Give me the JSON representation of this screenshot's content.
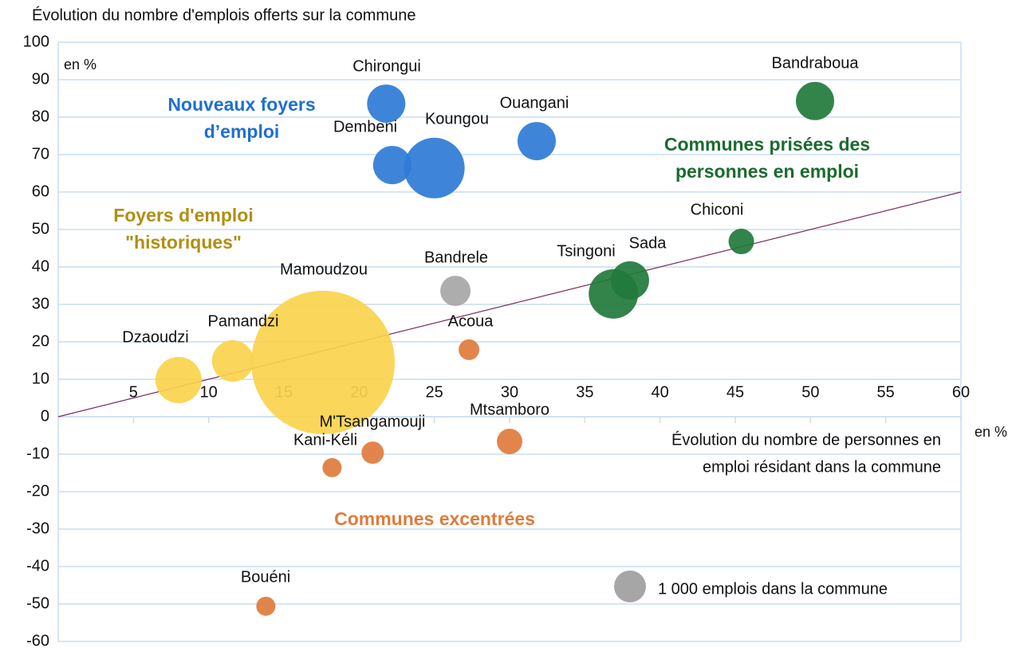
{
  "chart_data": {
    "type": "bubble",
    "title": "Évolution du nombre d'emplois offerts sur la commune",
    "y_unit": "en %",
    "x_label": [
      "Évolution du nombre de personnes en",
      "emploi résidant dans la commune"
    ],
    "x_unit": "en %",
    "xlim": [
      0,
      60
    ],
    "ylim": [
      -60,
      100
    ],
    "xticks": [
      5,
      10,
      15,
      20,
      25,
      30,
      35,
      40,
      45,
      50,
      55,
      60
    ],
    "yticks": [
      -60,
      -50,
      -40,
      -30,
      -20,
      -10,
      0,
      10,
      20,
      30,
      40,
      50,
      60,
      70,
      80,
      90,
      100
    ],
    "grid": true,
    "reference_line": {
      "slope": 1,
      "color": "#7b2d5e"
    },
    "points": [
      {
        "label": "Chirongui",
        "x": 21.8,
        "y": 83.6,
        "size": 1440,
        "color": "#2e7bd6"
      },
      {
        "label": "Dembeni",
        "x": 22.2,
        "y": 67.2,
        "size": 1440,
        "color": "#2e7bd6"
      },
      {
        "label": "Koungou",
        "x": 25.0,
        "y": 66.4,
        "size": 3610,
        "color": "#2e7bd6"
      },
      {
        "label": "Ouangani",
        "x": 31.8,
        "y": 73.6,
        "size": 1440,
        "color": "#2e7bd6"
      },
      {
        "label": "Bandraboua",
        "x": 50.3,
        "y": 84.3,
        "size": 1440,
        "color": "#217a3c"
      },
      {
        "label": "Chiconi",
        "x": 45.4,
        "y": 46.8,
        "size": 640,
        "color": "#217a3c"
      },
      {
        "label": "Sada",
        "x": 38.0,
        "y": 36.4,
        "size": 1440,
        "color": "#217a3c"
      },
      {
        "label": "Tsingoni",
        "x": 36.9,
        "y": 32.8,
        "size": 2400,
        "color": "#217a3c"
      },
      {
        "label": "Bandrele",
        "x": 26.4,
        "y": 33.6,
        "size": 900,
        "color": "#a6a6a6"
      },
      {
        "label": "Acoua",
        "x": 27.3,
        "y": 17.9,
        "size": 420,
        "color": "#e07b3c"
      },
      {
        "label": "Mamoudzou",
        "x": 17.6,
        "y": 14.5,
        "size": 20250,
        "color": "#fad24c"
      },
      {
        "label": "Pamandzi",
        "x": 11.6,
        "y": 14.9,
        "size": 1690,
        "color": "#fad24c"
      },
      {
        "label": "Dzaoudzi",
        "x": 8.0,
        "y": 9.8,
        "size": 2100,
        "color": "#fad24c"
      },
      {
        "label": "Mtsamboro",
        "x": 30.0,
        "y": -6.6,
        "size": 640,
        "color": "#e07b3c"
      },
      {
        "label": "M'Tsangamouji",
        "x": 20.9,
        "y": -9.6,
        "size": 490,
        "color": "#e07b3c"
      },
      {
        "label": "Kani-Kéli",
        "x": 18.2,
        "y": -13.6,
        "size": 360,
        "color": "#e07b3c"
      },
      {
        "label": "Bouéni",
        "x": 13.8,
        "y": -50.6,
        "size": 360,
        "color": "#e07b3c"
      }
    ],
    "annotations": [
      {
        "lines": [
          "Nouveaux foyers",
          "d’emploi"
        ],
        "color": "#1f6fd0"
      },
      {
        "lines": [
          "Communes prisées des",
          "personnes en emploi"
        ],
        "color": "#1a6b2e"
      },
      {
        "lines": [
          "Foyers d'emploi",
          "\"historiques\""
        ],
        "color": "#b08f12"
      },
      {
        "lines": [
          "Communes excentrées"
        ],
        "color": "#e07b3c"
      }
    ],
    "size_legend": {
      "label": "1 000 emplois dans la commune",
      "size": 1000,
      "color": "#a6a6a6"
    }
  }
}
